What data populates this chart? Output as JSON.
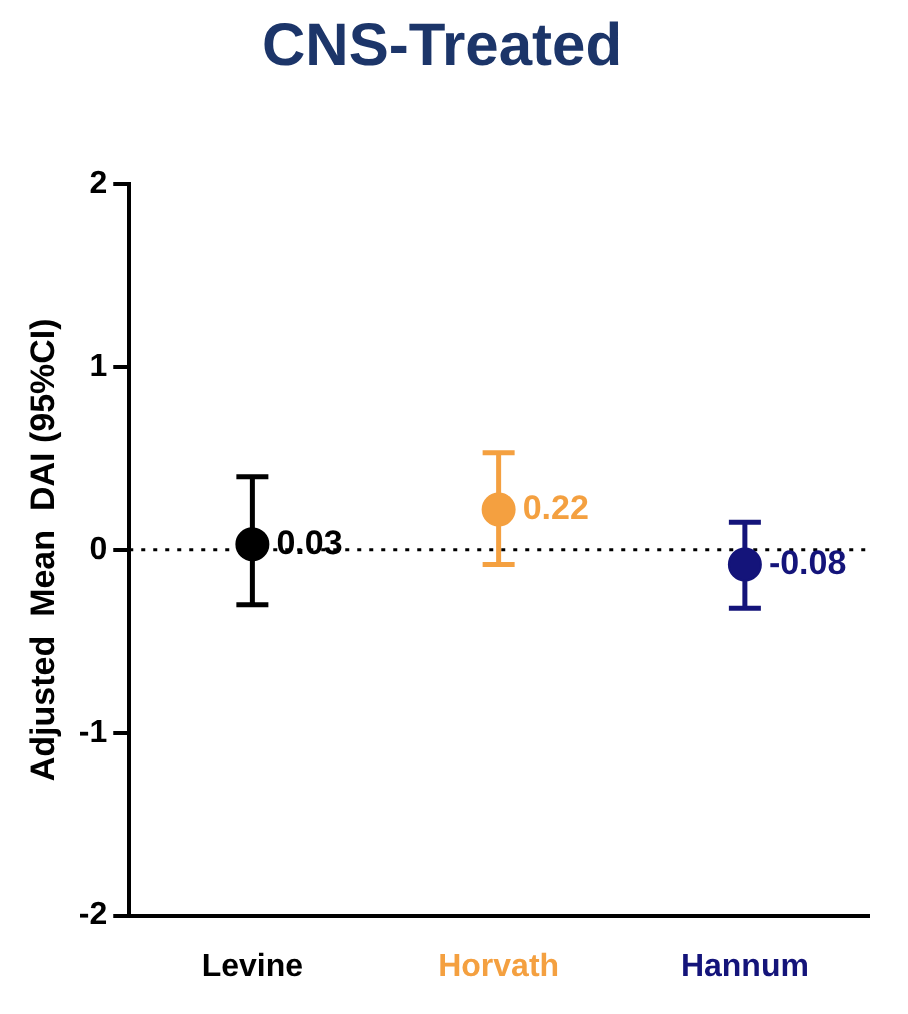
{
  "chart_data": {
    "type": "scatter",
    "title": "CNS-Treated",
    "ylabel": "Adjusted  Mean  DAI (95%CI)",
    "categories": [
      "Levine",
      "Horvath",
      "Hannum"
    ],
    "values": [
      0.03,
      0.22,
      -0.08
    ],
    "colors": [
      "#000000",
      "#f4a040",
      "#14147a"
    ],
    "errors": [
      [
        -0.3,
        0.4
      ],
      [
        -0.08,
        0.53
      ],
      [
        -0.32,
        0.15
      ]
    ],
    "data_labels": true,
    "ylim": [
      -2,
      2
    ],
    "yticks": [
      -2,
      -1,
      0,
      1,
      2
    ],
    "ref_lines": [
      {
        "axis": "y",
        "value": 0,
        "line_style": "dotted",
        "color": "#000000"
      }
    ],
    "grid": false,
    "legend": false,
    "marker": "circle"
  }
}
